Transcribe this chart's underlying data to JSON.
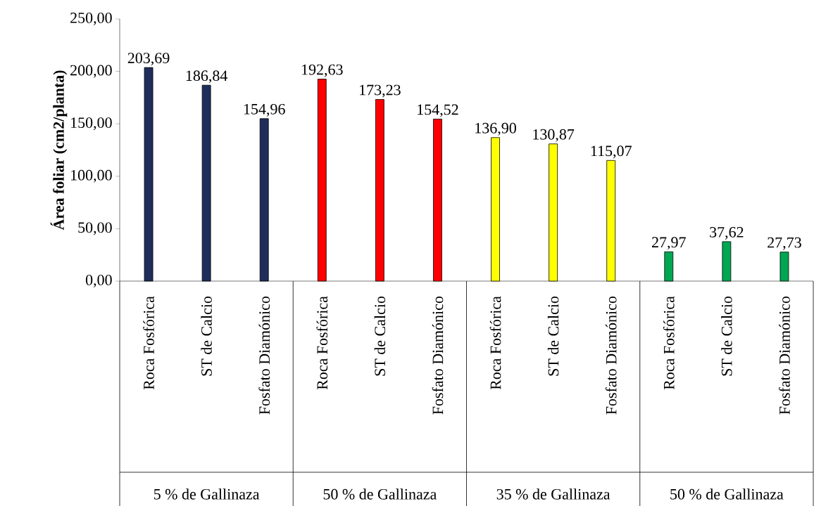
{
  "chart_data": {
    "type": "bar",
    "ylabel": "Área foliar (cm2/planta)",
    "categories": [
      "Roca Fosfórica",
      "ST de Calcio",
      "Fosfato Diamónico",
      "Roca Fosfórica",
      "ST de Calcio",
      "Fosfato Diamónico",
      "Roca Fosfórica",
      "ST de Calcio",
      "Fosfato Diamónico",
      "Roca Fosfórica",
      "ST de Calcio",
      "Fosfato Diamónico"
    ],
    "values": [
      203.69,
      186.84,
      154.96,
      192.63,
      173.23,
      154.52,
      136.9,
      130.87,
      115.07,
      27.97,
      37.62,
      27.73
    ],
    "value_labels": [
      "203,69",
      "186,84",
      "154,96",
      "192,63",
      "173,23",
      "154,52",
      "136,90",
      "130,87",
      "115,07",
      "27,97",
      "37,62",
      "27,73"
    ],
    "colors": [
      "#1f2d5c",
      "#1f2d5c",
      "#1f2d5c",
      "#ff0000",
      "#ff0000",
      "#ff0000",
      "#ffff00",
      "#ffff00",
      "#ffff00",
      "#00a651",
      "#00a651",
      "#00a651"
    ],
    "annotations": [
      "5 % de Gallinaza",
      "50 % de Gallinaza",
      "35 % de Gallinaza",
      "50 % de Gallinaza"
    ],
    "ylim": [
      0,
      250
    ],
    "yticks": [
      {
        "value": 0,
        "label": "0,00"
      },
      {
        "value": 50,
        "label": "50,00"
      },
      {
        "value": 100,
        "label": "100,00"
      },
      {
        "value": 150,
        "label": "150,00"
      },
      {
        "value": 200,
        "label": "200,00"
      },
      {
        "value": 250,
        "label": "250,00"
      }
    ]
  }
}
